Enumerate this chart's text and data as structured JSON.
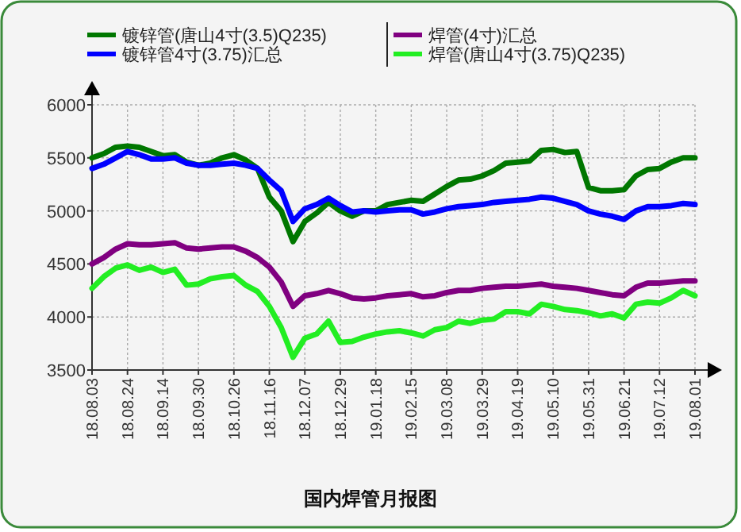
{
  "chart_data": {
    "type": "line",
    "title": "国内焊管月报图",
    "legend": "top",
    "grid": true,
    "marker": "none",
    "line_style": "solid",
    "categories": [
      "18.08.03",
      null,
      null,
      "18.08.24",
      null,
      null,
      "18.09.14",
      null,
      null,
      "18.09.30",
      null,
      null,
      "18.10.26",
      null,
      null,
      "18.11.16",
      null,
      null,
      "18.12.07",
      null,
      null,
      "18.12.29",
      null,
      null,
      "19.01.18",
      null,
      null,
      "19.02.15",
      null,
      null,
      "19.03.08",
      null,
      null,
      "19.03.29",
      null,
      null,
      "19.04.19",
      null,
      null,
      "19.05.10",
      null,
      null,
      "19.05.31",
      null,
      null,
      "19.06.21",
      null,
      null,
      "19.07.12",
      null,
      null,
      "19.08.01"
    ],
    "ylim": [
      3500,
      6000
    ],
    "yticks": [
      3500,
      4000,
      4500,
      5000,
      5500,
      6000
    ],
    "series": [
      {
        "name": "镀锌管(唐山4寸(3.5)Q235)",
        "color": "#007700",
        "values": [
          5500,
          5540,
          5600,
          5610,
          5600,
          5560,
          5520,
          5530,
          5460,
          5430,
          5450,
          5500,
          5530,
          5480,
          5400,
          5130,
          5000,
          4710,
          4900,
          4980,
          5080,
          5000,
          4950,
          5000,
          5000,
          5060,
          5080,
          5100,
          5090,
          5160,
          5230,
          5290,
          5300,
          5330,
          5380,
          5450,
          5460,
          5470,
          5570,
          5580,
          5550,
          5560,
          5220,
          5190,
          5190,
          5200,
          5330,
          5390,
          5400,
          5460,
          5500,
          5500
        ]
      },
      {
        "name": "镀锌管4寸(3.75)汇总",
        "color": "#0000ff",
        "values": [
          5400,
          5440,
          5500,
          5560,
          5530,
          5490,
          5490,
          5500,
          5450,
          5430,
          5430,
          5440,
          5450,
          5430,
          5400,
          5290,
          5190,
          4900,
          5020,
          5060,
          5120,
          5050,
          4990,
          5000,
          4990,
          5000,
          5010,
          5010,
          4970,
          4990,
          5020,
          5040,
          5050,
          5060,
          5080,
          5090,
          5100,
          5110,
          5130,
          5120,
          5090,
          5060,
          5000,
          4970,
          4950,
          4920,
          5000,
          5040,
          5040,
          5050,
          5070,
          5060
        ]
      },
      {
        "name": "焊管(4寸)汇总",
        "color": "#800080",
        "values": [
          4500,
          4560,
          4640,
          4690,
          4680,
          4680,
          4690,
          4700,
          4650,
          4640,
          4650,
          4660,
          4660,
          4620,
          4560,
          4470,
          4330,
          4100,
          4200,
          4220,
          4250,
          4220,
          4180,
          4170,
          4180,
          4200,
          4210,
          4220,
          4190,
          4200,
          4230,
          4250,
          4250,
          4270,
          4280,
          4290,
          4290,
          4300,
          4310,
          4290,
          4280,
          4270,
          4250,
          4230,
          4210,
          4200,
          4280,
          4320,
          4320,
          4330,
          4340,
          4340
        ]
      },
      {
        "name": "焊管(唐山4寸(3.75)Q235)",
        "color": "#22ee22",
        "values": [
          4270,
          4380,
          4460,
          4490,
          4440,
          4470,
          4420,
          4450,
          4300,
          4310,
          4360,
          4380,
          4390,
          4300,
          4240,
          4100,
          3900,
          3620,
          3800,
          3840,
          3960,
          3760,
          3770,
          3810,
          3840,
          3860,
          3870,
          3850,
          3820,
          3880,
          3900,
          3960,
          3940,
          3970,
          3980,
          4050,
          4050,
          4030,
          4120,
          4100,
          4070,
          4060,
          4040,
          4010,
          4030,
          3990,
          4120,
          4140,
          4130,
          4180,
          4250,
          4200
        ]
      }
    ]
  }
}
